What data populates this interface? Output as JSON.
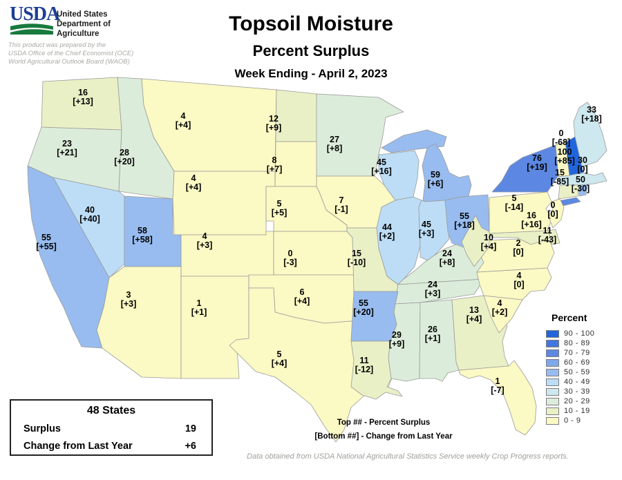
{
  "header": {
    "logo_text": "USDA",
    "agency_lines": [
      "United States",
      "Department of",
      "Agriculture"
    ],
    "prepared_by": [
      "This product was prepared by the",
      "USDA Office of the Chief Economist (OCE)",
      "World Agricultural Outlook Board (WAOB)"
    ]
  },
  "title": {
    "main": "Topsoil Moisture",
    "subtitle": "Percent Surplus",
    "week": "Week Ending - April 2, 2023"
  },
  "legend": {
    "title": "Percent",
    "bands": [
      {
        "range": "0 - 9",
        "color": "#FBF9C4"
      },
      {
        "range": "10 - 19",
        "color": "#EAF0C6"
      },
      {
        "range": "20 - 29",
        "color": "#DCECDA"
      },
      {
        "range": "30 - 39",
        "color": "#CDE8EE"
      },
      {
        "range": "40 - 49",
        "color": "#BCDDF5"
      },
      {
        "range": "50 - 59",
        "color": "#98BCEF"
      },
      {
        "range": "60 - 69",
        "color": "#7FA8EB"
      },
      {
        "range": "70 - 79",
        "color": "#5C88E3"
      },
      {
        "range": "80 - 89",
        "color": "#4377E0"
      },
      {
        "range": "90 - 100",
        "color": "#2065DC"
      }
    ]
  },
  "summary_box": {
    "title": "48 States",
    "rows": [
      {
        "label": "Surplus",
        "value": "19"
      },
      {
        "label": "Change from Last Year",
        "value": "+6"
      }
    ]
  },
  "map_key_note": {
    "line1": "Top ## - Percent Surplus",
    "line2": "[Bottom ##] - Change from Last Year"
  },
  "footer": "Data obtained from USDA National Agricultural Statistics Service weekly Crop Progress reports.",
  "chart_data": {
    "type": "choropleth",
    "title": "Topsoil Moisture Percent Surplus, Week Ending April 2, 2023",
    "unit": "percent surplus [change from last year]",
    "states": [
      {
        "code": "CA",
        "name": "California",
        "value": 55,
        "value_label": "55",
        "change_label": "[+55]"
      },
      {
        "code": "OR",
        "name": "Oregon",
        "value": 23,
        "value_label": "23",
        "change_label": "[+21]"
      },
      {
        "code": "WA",
        "name": "Washington",
        "value": 16,
        "value_label": "16",
        "change_label": "[+13]"
      },
      {
        "code": "ID",
        "name": "Idaho",
        "value": 28,
        "value_label": "28",
        "change_label": "[+20]"
      },
      {
        "code": "MT",
        "name": "Montana",
        "value": 4,
        "value_label": "4",
        "change_label": "[+4]"
      },
      {
        "code": "WY",
        "name": "Wyoming",
        "value": 4,
        "value_label": "4",
        "change_label": "[+4]"
      },
      {
        "code": "NV",
        "name": "Nevada",
        "value": 40,
        "value_label": "40",
        "change_label": "[+40]"
      },
      {
        "code": "UT",
        "name": "Utah",
        "value": 58,
        "value_label": "58",
        "change_label": "[+58]"
      },
      {
        "code": "CO",
        "name": "Colorado",
        "value": 4,
        "value_label": "4",
        "change_label": "[+3]"
      },
      {
        "code": "AZ",
        "name": "Arizona",
        "value": 3,
        "value_label": "3",
        "change_label": "[+3]"
      },
      {
        "code": "NM",
        "name": "New Mexico",
        "value": 1,
        "value_label": "1",
        "change_label": "[+1]"
      },
      {
        "code": "ND",
        "name": "North Dakota",
        "value": 12,
        "value_label": "12",
        "change_label": "[+9]"
      },
      {
        "code": "SD",
        "name": "South Dakota",
        "value": 8,
        "value_label": "8",
        "change_label": "[+7]"
      },
      {
        "code": "NE",
        "name": "Nebraska",
        "value": 5,
        "value_label": "5",
        "change_label": "[+5]"
      },
      {
        "code": "KS",
        "name": "Kansas",
        "value": 0,
        "value_label": "0",
        "change_label": "[-3]"
      },
      {
        "code": "OK",
        "name": "Oklahoma",
        "value": 6,
        "value_label": "6",
        "change_label": "[+4]"
      },
      {
        "code": "TX",
        "name": "Texas",
        "value": 5,
        "value_label": "5",
        "change_label": "[+4]"
      },
      {
        "code": "MN",
        "name": "Minnesota",
        "value": 27,
        "value_label": "27",
        "change_label": "[+8]"
      },
      {
        "code": "IA",
        "name": "Iowa",
        "value": 7,
        "value_label": "7",
        "change_label": "[-1]"
      },
      {
        "code": "MO",
        "name": "Missouri",
        "value": 15,
        "value_label": "15",
        "change_label": "[-10]"
      },
      {
        "code": "WI",
        "name": "Wisconsin",
        "value": 45,
        "value_label": "45",
        "change_label": "[+16]"
      },
      {
        "code": "MI",
        "name": "Michigan",
        "value": 59,
        "value_label": "59",
        "change_label": "[+6]"
      },
      {
        "code": "IL",
        "name": "Illinois",
        "value": 44,
        "value_label": "44",
        "change_label": "[+2]"
      },
      {
        "code": "IN",
        "name": "Indiana",
        "value": 45,
        "value_label": "45",
        "change_label": "[+3]"
      },
      {
        "code": "OH",
        "name": "Ohio",
        "value": 55,
        "value_label": "55",
        "change_label": "[+18]"
      },
      {
        "code": "KY",
        "name": "Kentucky",
        "value": 24,
        "value_label": "24",
        "change_label": "[+8]"
      },
      {
        "code": "TN",
        "name": "Tennessee",
        "value": 24,
        "value_label": "24",
        "change_label": "[+3]"
      },
      {
        "code": "AR",
        "name": "Arkansas",
        "value": 55,
        "value_label": "55",
        "change_label": "[+20]"
      },
      {
        "code": "LA",
        "name": "Louisiana",
        "value": 11,
        "value_label": "11",
        "change_label": "[-12]"
      },
      {
        "code": "MS",
        "name": "Mississippi",
        "value": 29,
        "value_label": "29",
        "change_label": "[+9]"
      },
      {
        "code": "AL",
        "name": "Alabama",
        "value": 26,
        "value_label": "26",
        "change_label": "[+1]"
      },
      {
        "code": "GA",
        "name": "Georgia",
        "value": 13,
        "value_label": "13",
        "change_label": "[+4]"
      },
      {
        "code": "FL",
        "name": "Florida",
        "value": 1,
        "value_label": "1",
        "change_label": "[-7]"
      },
      {
        "code": "SC",
        "name": "South Carolina",
        "value": 4,
        "value_label": "4",
        "change_label": "[+2]"
      },
      {
        "code": "NC",
        "name": "North Carolina",
        "value": 4,
        "value_label": "4",
        "change_label": "[0]"
      },
      {
        "code": "VA",
        "name": "Virginia",
        "value": 2,
        "value_label": "2",
        "change_label": "[0]"
      },
      {
        "code": "WV",
        "name": "West Virginia",
        "value": 10,
        "value_label": "10",
        "change_label": "[+4]"
      },
      {
        "code": "PA",
        "name": "Pennsylvania",
        "value": 5,
        "value_label": "5",
        "change_label": "[-14]"
      },
      {
        "code": "NY",
        "name": "New York",
        "value": 76,
        "value_label": "76",
        "change_label": "[+19]"
      },
      {
        "code": "NJ",
        "name": "New Jersey",
        "value": 0,
        "value_label": "0",
        "change_label": "[0]"
      },
      {
        "code": "MD",
        "name": "Maryland",
        "value": 16,
        "value_label": "16",
        "change_label": "[+16]"
      },
      {
        "code": "DE",
        "name": "Delaware",
        "value": 11,
        "value_label": "11",
        "change_label": "[-43]"
      },
      {
        "code": "VT",
        "name": "Vermont",
        "value": 0,
        "value_label": "0",
        "change_label": "[-68]"
      },
      {
        "code": "NH",
        "name": "New Hampshire",
        "value": 100,
        "value_label": "100",
        "change_label": "[+85]"
      },
      {
        "code": "ME",
        "name": "Maine",
        "value": 33,
        "value_label": "33",
        "change_label": "[+18]"
      },
      {
        "code": "MA",
        "name": "Massachusetts",
        "value": 30,
        "value_label": "30",
        "change_label": "[0]"
      },
      {
        "code": "CT",
        "name": "Connecticut",
        "value": 15,
        "value_label": "15",
        "change_label": "[-85]"
      },
      {
        "code": "RI",
        "name": "Rhode Island",
        "value": 50,
        "value_label": "50",
        "change_label": "[-30]"
      }
    ]
  }
}
